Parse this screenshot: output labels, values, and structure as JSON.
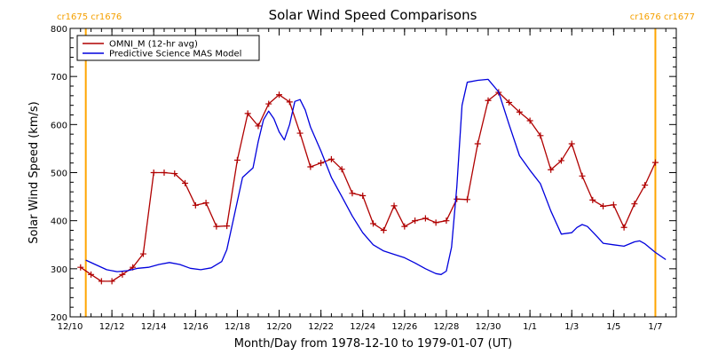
{
  "chart_data": {
    "type": "line",
    "title": "Solar Wind Speed Comparisons",
    "xlabel": "Month/Day from 1978-12-10 to 1979-01-07 (UT)",
    "ylabel": "Solar Wind Speed (km/s)",
    "xlim": [
      "1978-12-10",
      "1979-01-08"
    ],
    "ylim": [
      200,
      800
    ],
    "x_ticks": [
      "12/10",
      "12/12",
      "12/14",
      "12/16",
      "12/18",
      "12/20",
      "12/22",
      "12/24",
      "12/26",
      "12/28",
      "12/30",
      "1/1",
      "1/3",
      "1/5",
      "1/7"
    ],
    "y_ticks": [
      200,
      300,
      400,
      500,
      600,
      700,
      800
    ],
    "legend_placement": "top-left",
    "carrington_markers": [
      {
        "label": "cr1675 cr1676",
        "date": "1978-12-10T18:00",
        "color": "#ffa500"
      },
      {
        "label": "cr1676 cr1677",
        "date": "1979-01-07T00:00",
        "color": "#ffa500"
      }
    ],
    "series": [
      {
        "name": "OMNI_M (12-hr avg)",
        "color": "#b00000",
        "marker": "plus",
        "points": [
          [
            "1978-12-10T12:00",
            303
          ],
          [
            "1978-12-11T00:00",
            288
          ],
          [
            "1978-12-11T12:00",
            274
          ],
          [
            "1978-12-12T00:00",
            274
          ],
          [
            "1978-12-12T12:00",
            288
          ],
          [
            "1978-12-13T00:00",
            303
          ],
          [
            "1978-12-13T12:00",
            331
          ],
          [
            "1978-12-14T00:00",
            500
          ],
          [
            "1978-12-14T12:00",
            500
          ],
          [
            "1978-12-15T00:00",
            498
          ],
          [
            "1978-12-15T12:00",
            478
          ],
          [
            "1978-12-16T00:00",
            432
          ],
          [
            "1978-12-16T12:00",
            437
          ],
          [
            "1978-12-17T00:00",
            388
          ],
          [
            "1978-12-17T12:00",
            389
          ],
          [
            "1978-12-18T00:00",
            526
          ],
          [
            "1978-12-18T12:00",
            623
          ],
          [
            "1978-12-19T00:00",
            597
          ],
          [
            "1978-12-19T12:00",
            643
          ],
          [
            "1978-12-20T00:00",
            662
          ],
          [
            "1978-12-20T12:00",
            647
          ],
          [
            "1978-12-21T00:00",
            582
          ],
          [
            "1978-12-21T12:00",
            512
          ],
          [
            "1978-12-22T00:00",
            520
          ],
          [
            "1978-12-22T12:00",
            528
          ],
          [
            "1978-12-23T00:00",
            507
          ],
          [
            "1978-12-23T12:00",
            457
          ],
          [
            "1978-12-24T00:00",
            452
          ],
          [
            "1978-12-24T12:00",
            394
          ],
          [
            "1978-12-25T00:00",
            380
          ],
          [
            "1978-12-25T12:00",
            431
          ],
          [
            "1978-12-26T00:00",
            388
          ],
          [
            "1978-12-26T12:00",
            400
          ],
          [
            "1978-12-27T00:00",
            405
          ],
          [
            "1978-12-27T12:00",
            396
          ],
          [
            "1978-12-28T00:00",
            400
          ],
          [
            "1978-12-28T12:00",
            445
          ],
          [
            "1978-12-29T00:00",
            444
          ],
          [
            "1978-12-29T12:00",
            560
          ],
          [
            "1978-12-30T00:00",
            650
          ],
          [
            "1978-12-30T12:00",
            667
          ],
          [
            "1978-12-31T00:00",
            646
          ],
          [
            "1978-12-31T12:00",
            626
          ],
          [
            "1979-01-01T00:00",
            608
          ],
          [
            "1979-01-01T12:00",
            577
          ],
          [
            "1979-01-02T00:00",
            506
          ],
          [
            "1979-01-02T12:00",
            525
          ],
          [
            "1979-01-03T00:00",
            560
          ],
          [
            "1979-01-03T12:00",
            493
          ],
          [
            "1979-01-04T00:00",
            443
          ],
          [
            "1979-01-04T12:00",
            430
          ],
          [
            "1979-01-05T00:00",
            433
          ],
          [
            "1979-01-05T12:00",
            386
          ],
          [
            "1979-01-06T00:00",
            435
          ],
          [
            "1979-01-06T12:00",
            474
          ],
          [
            "1979-01-07T00:00",
            521
          ]
        ]
      },
      {
        "name": "Predictive Science MAS Model",
        "color": "#0000dd",
        "marker": "none",
        "points": [
          [
            "1978-12-10T18:00",
            318
          ],
          [
            "1978-12-11T06:00",
            308
          ],
          [
            "1978-12-11T18:00",
            298
          ],
          [
            "1978-12-12T06:00",
            294
          ],
          [
            "1978-12-12T18:00",
            296
          ],
          [
            "1978-12-13T06:00",
            301
          ],
          [
            "1978-12-13T18:00",
            303
          ],
          [
            "1978-12-14T06:00",
            309
          ],
          [
            "1978-12-14T18:00",
            313
          ],
          [
            "1978-12-15T06:00",
            309
          ],
          [
            "1978-12-15T18:00",
            301
          ],
          [
            "1978-12-16T06:00",
            298
          ],
          [
            "1978-12-16T18:00",
            302
          ],
          [
            "1978-12-17T06:00",
            315
          ],
          [
            "1978-12-17T12:00",
            340
          ],
          [
            "1978-12-17T18:00",
            390
          ],
          [
            "1978-12-18T00:00",
            440
          ],
          [
            "1978-12-18T06:00",
            490
          ],
          [
            "1978-12-18T18:00",
            510
          ],
          [
            "1978-12-19T00:00",
            565
          ],
          [
            "1978-12-19T06:00",
            610
          ],
          [
            "1978-12-19T12:00",
            628
          ],
          [
            "1978-12-19T18:00",
            612
          ],
          [
            "1978-12-20T00:00",
            585
          ],
          [
            "1978-12-20T06:00",
            568
          ],
          [
            "1978-12-20T12:00",
            600
          ],
          [
            "1978-12-20T18:00",
            648
          ],
          [
            "1978-12-21T00:00",
            652
          ],
          [
            "1978-12-21T06:00",
            630
          ],
          [
            "1978-12-21T12:00",
            595
          ],
          [
            "1978-12-22T00:00",
            545
          ],
          [
            "1978-12-22T12:00",
            490
          ],
          [
            "1978-12-23T00:00",
            450
          ],
          [
            "1978-12-23T12:00",
            410
          ],
          [
            "1978-12-24T00:00",
            375
          ],
          [
            "1978-12-24T12:00",
            350
          ],
          [
            "1978-12-25T00:00",
            337
          ],
          [
            "1978-12-25T12:00",
            330
          ],
          [
            "1978-12-26T00:00",
            323
          ],
          [
            "1978-12-26T12:00",
            312
          ],
          [
            "1978-12-27T00:00",
            300
          ],
          [
            "1978-12-27T12:00",
            290
          ],
          [
            "1978-12-27T18:00",
            288
          ],
          [
            "1978-12-28T00:00",
            295
          ],
          [
            "1978-12-28T06:00",
            345
          ],
          [
            "1978-12-28T12:00",
            470
          ],
          [
            "1978-12-28T18:00",
            640
          ],
          [
            "1978-12-29T00:00",
            688
          ],
          [
            "1978-12-29T12:00",
            692
          ],
          [
            "1978-12-30T00:00",
            694
          ],
          [
            "1978-12-30T12:00",
            668
          ],
          [
            "1978-12-31T00:00",
            600
          ],
          [
            "1978-12-31T12:00",
            535
          ],
          [
            "1979-01-01T00:00",
            505
          ],
          [
            "1979-01-01T12:00",
            477
          ],
          [
            "1979-01-02T00:00",
            420
          ],
          [
            "1979-01-02T12:00",
            372
          ],
          [
            "1979-01-03T00:00",
            375
          ],
          [
            "1979-01-03T06:00",
            386
          ],
          [
            "1979-01-03T12:00",
            392
          ],
          [
            "1979-01-03T18:00",
            388
          ],
          [
            "1979-01-04T06:00",
            365
          ],
          [
            "1979-01-04T12:00",
            353
          ],
          [
            "1979-01-05T00:00",
            350
          ],
          [
            "1979-01-05T12:00",
            347
          ],
          [
            "1979-01-06T00:00",
            356
          ],
          [
            "1979-01-06T06:00",
            358
          ],
          [
            "1979-01-06T12:00",
            352
          ],
          [
            "1979-01-07T00:00",
            334
          ],
          [
            "1979-01-07T12:00",
            319
          ]
        ]
      }
    ]
  }
}
